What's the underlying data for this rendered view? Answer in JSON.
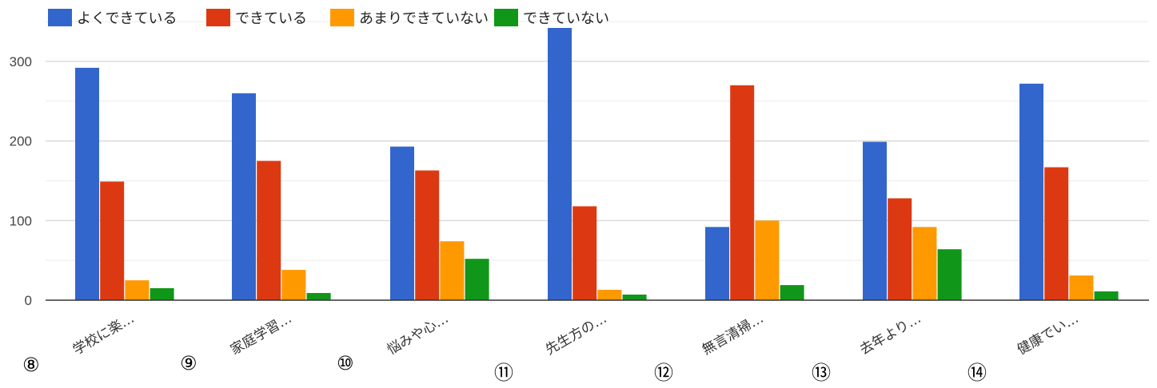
{
  "chart_data": {
    "type": "bar",
    "categories": [
      "学校に楽…",
      "家庭学習…",
      "悩みや心…",
      "先生方の…",
      "無言清掃…",
      "去年より…",
      "健康でい…"
    ],
    "series": [
      {
        "name": "よくできている",
        "color": "#3366cc",
        "values": [
          292,
          260,
          193,
          342,
          92,
          199,
          272
        ]
      },
      {
        "name": "できている",
        "color": "#dc3912",
        "values": [
          149,
          175,
          163,
          118,
          270,
          128,
          167
        ]
      },
      {
        "name": "あまりできていない",
        "color": "#ff9900",
        "values": [
          25,
          38,
          74,
          13,
          100,
          92,
          31
        ]
      },
      {
        "name": "できていない",
        "color": "#109618",
        "values": [
          15,
          9,
          52,
          7,
          19,
          64,
          11
        ]
      }
    ],
    "yticks": [
      0,
      100,
      200,
      300
    ],
    "ylim": [
      0,
      350
    ],
    "grid": true,
    "legend": "top-left"
  },
  "markers": [
    "⑧",
    "⑨",
    "⑩",
    "⑪",
    "⑫",
    "⑬",
    "⑭"
  ]
}
